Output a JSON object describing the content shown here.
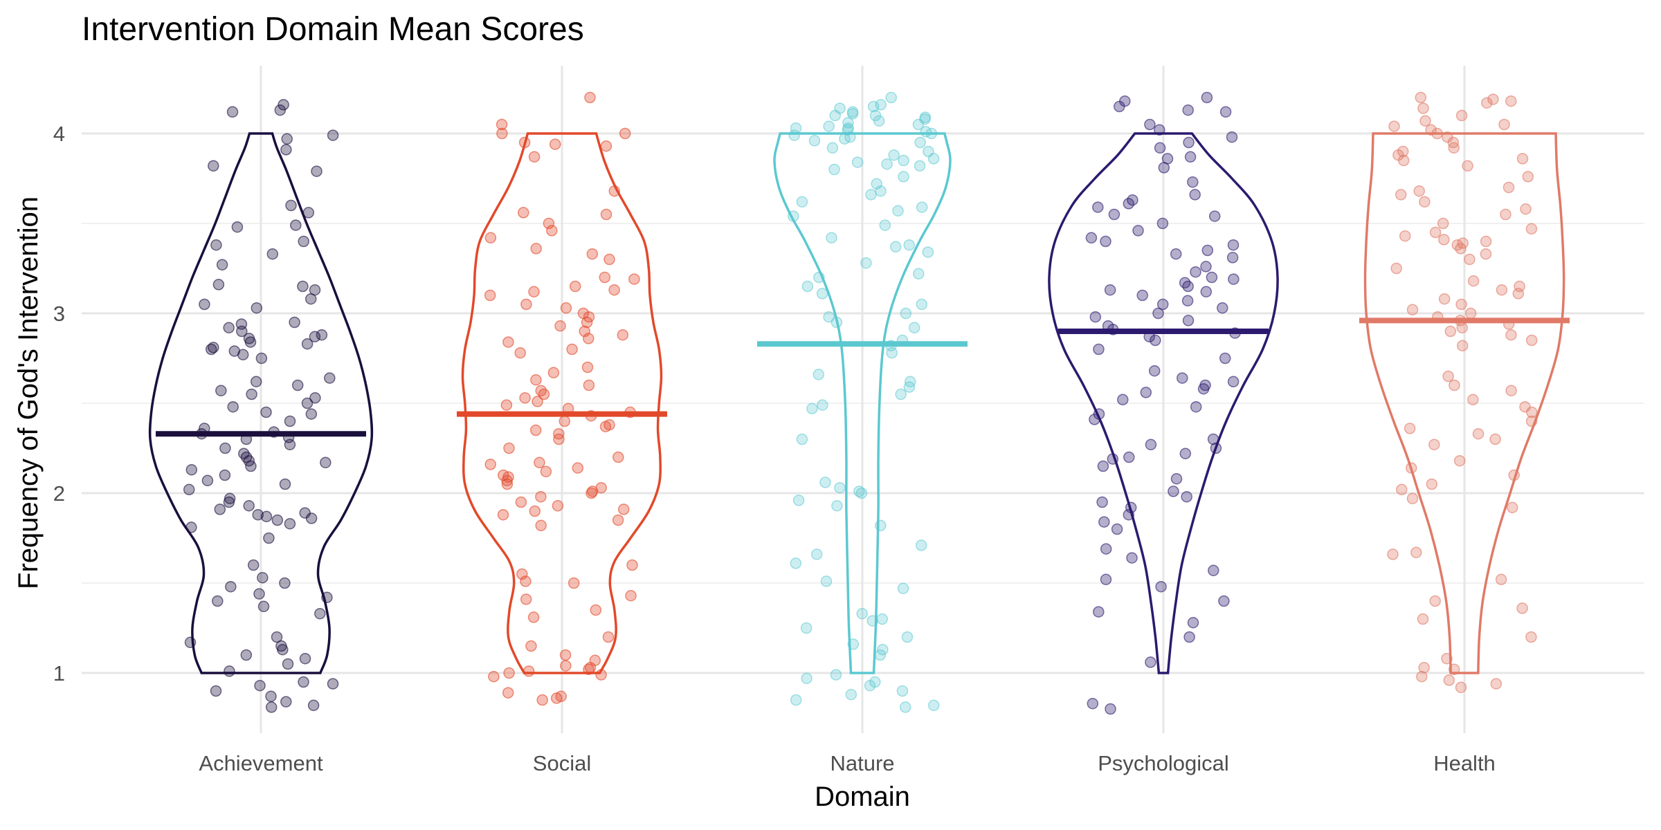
{
  "chart_data": {
    "type": "violin",
    "title": "Intervention Domain Mean Scores",
    "xlabel": "Domain",
    "ylabel": "Frequency of God's Intervention",
    "ylim": [
      0.7,
      4.25
    ],
    "y_ticks": [
      1,
      2,
      3,
      4
    ],
    "y_tick_labels": [
      "1",
      "2",
      "3",
      "4"
    ],
    "grid": true,
    "legend": "none",
    "categories": [
      "Achievement",
      "Social",
      "Nature",
      "Psychological",
      "Health"
    ],
    "series": [
      {
        "category": "Achievement",
        "color": "#1a0f3d",
        "point_opacity": 0.35,
        "mean": 2.33,
        "min": 1,
        "max": 4,
        "density": [
          [
            1.0,
            0.52
          ],
          [
            1.1,
            0.58
          ],
          [
            1.25,
            0.6
          ],
          [
            1.4,
            0.56
          ],
          [
            1.55,
            0.5
          ],
          [
            1.7,
            0.55
          ],
          [
            1.85,
            0.7
          ],
          [
            2.0,
            0.82
          ],
          [
            2.15,
            0.92
          ],
          [
            2.3,
            0.97
          ],
          [
            2.45,
            0.96
          ],
          [
            2.6,
            0.92
          ],
          [
            2.75,
            0.86
          ],
          [
            2.9,
            0.78
          ],
          [
            3.05,
            0.69
          ],
          [
            3.2,
            0.6
          ],
          [
            3.35,
            0.5
          ],
          [
            3.5,
            0.4
          ],
          [
            3.65,
            0.31
          ],
          [
            3.8,
            0.22
          ],
          [
            3.92,
            0.14
          ],
          [
            4.0,
            0.1
          ]
        ],
        "points": [
          4.16,
          4.12,
          4.13,
          3.99,
          3.97,
          3.91,
          3.82,
          3.79,
          3.6,
          3.56,
          3.49,
          3.48,
          3.4,
          3.38,
          3.33,
          3.27,
          3.16,
          3.15,
          3.13,
          3.08,
          3.05,
          3.03,
          2.95,
          2.94,
          2.92,
          2.9,
          2.88,
          2.87,
          2.86,
          2.84,
          2.83,
          2.81,
          2.8,
          2.79,
          2.77,
          2.75,
          2.64,
          2.62,
          2.6,
          2.57,
          2.55,
          2.53,
          2.5,
          2.48,
          2.45,
          2.44,
          2.4,
          2.36,
          2.34,
          2.33,
          2.31,
          2.3,
          2.27,
          2.25,
          2.22,
          2.2,
          2.18,
          2.17,
          2.15,
          2.13,
          2.1,
          2.07,
          2.05,
          2.02,
          1.97,
          1.95,
          1.93,
          1.91,
          1.89,
          1.88,
          1.87,
          1.86,
          1.85,
          1.83,
          1.81,
          1.75,
          1.6,
          1.53,
          1.5,
          1.48,
          1.44,
          1.42,
          1.4,
          1.37,
          1.33,
          1.2,
          1.17,
          1.15,
          1.13,
          1.1,
          1.08,
          1.05,
          1.01,
          0.95,
          0.94,
          0.93,
          0.9,
          0.87,
          0.84,
          0.82,
          0.81
        ]
      },
      {
        "category": "Social",
        "color": "#e2492a",
        "point_opacity": 0.35,
        "mean": 2.44,
        "min": 1,
        "max": 4,
        "density": [
          [
            1.0,
            0.33
          ],
          [
            1.08,
            0.4
          ],
          [
            1.2,
            0.47
          ],
          [
            1.35,
            0.46
          ],
          [
            1.5,
            0.42
          ],
          [
            1.62,
            0.46
          ],
          [
            1.75,
            0.6
          ],
          [
            1.9,
            0.76
          ],
          [
            2.05,
            0.85
          ],
          [
            2.2,
            0.86
          ],
          [
            2.35,
            0.84
          ],
          [
            2.5,
            0.85
          ],
          [
            2.65,
            0.87
          ],
          [
            2.8,
            0.85
          ],
          [
            2.95,
            0.8
          ],
          [
            3.1,
            0.77
          ],
          [
            3.25,
            0.76
          ],
          [
            3.4,
            0.72
          ],
          [
            3.55,
            0.6
          ],
          [
            3.7,
            0.47
          ],
          [
            3.85,
            0.37
          ],
          [
            4.0,
            0.3
          ]
        ],
        "points": [
          4.2,
          4.05,
          4.0,
          4.0,
          3.95,
          3.94,
          3.93,
          3.87,
          3.68,
          3.56,
          3.55,
          3.5,
          3.46,
          3.42,
          3.36,
          3.33,
          3.3,
          3.2,
          3.19,
          3.15,
          3.13,
          3.12,
          3.1,
          3.05,
          3.03,
          3.0,
          2.98,
          2.95,
          2.93,
          2.9,
          2.88,
          2.86,
          2.84,
          2.8,
          2.78,
          2.7,
          2.67,
          2.63,
          2.6,
          2.57,
          2.55,
          2.53,
          2.51,
          2.49,
          2.47,
          2.45,
          2.43,
          2.4,
          2.38,
          2.37,
          2.35,
          2.33,
          2.3,
          2.25,
          2.2,
          2.17,
          2.16,
          2.14,
          2.12,
          2.1,
          2.09,
          2.07,
          2.05,
          2.03,
          2.01,
          2.0,
          1.98,
          1.95,
          1.93,
          1.91,
          1.9,
          1.88,
          1.85,
          1.82,
          1.6,
          1.55,
          1.51,
          1.5,
          1.43,
          1.41,
          1.35,
          1.31,
          1.2,
          1.15,
          1.1,
          1.07,
          1.04,
          1.03,
          1.02,
          1.01,
          1.0,
          0.99,
          0.98,
          0.89,
          0.87,
          0.86,
          0.85
        ]
      },
      {
        "category": "Nature",
        "color": "#5bc8d0",
        "point_opacity": 0.3,
        "mean": 2.83,
        "min": 1,
        "max": 4,
        "density": [
          [
            1.0,
            0.1
          ],
          [
            1.3,
            0.12
          ],
          [
            1.6,
            0.13
          ],
          [
            1.9,
            0.14
          ],
          [
            2.2,
            0.14
          ],
          [
            2.5,
            0.15
          ],
          [
            2.8,
            0.18
          ],
          [
            3.0,
            0.24
          ],
          [
            3.2,
            0.35
          ],
          [
            3.4,
            0.5
          ],
          [
            3.55,
            0.63
          ],
          [
            3.7,
            0.73
          ],
          [
            3.85,
            0.77
          ],
          [
            3.95,
            0.74
          ],
          [
            4.0,
            0.72
          ]
        ],
        "points": [
          4.2,
          4.16,
          4.15,
          4.14,
          4.12,
          4.11,
          4.1,
          4.1,
          4.09,
          4.08,
          4.07,
          4.06,
          4.05,
          4.04,
          4.03,
          4.03,
          4.02,
          4.01,
          4.0,
          3.99,
          3.98,
          3.97,
          3.96,
          3.95,
          3.92,
          3.9,
          3.88,
          3.86,
          3.85,
          3.84,
          3.83,
          3.82,
          3.8,
          3.76,
          3.72,
          3.68,
          3.66,
          3.62,
          3.59,
          3.57,
          3.54,
          3.49,
          3.42,
          3.38,
          3.37,
          3.34,
          3.28,
          3.22,
          3.2,
          3.15,
          3.11,
          3.05,
          3.0,
          2.98,
          2.95,
          2.92,
          2.85,
          2.82,
          2.78,
          2.66,
          2.62,
          2.59,
          2.55,
          2.49,
          2.47,
          2.3,
          2.06,
          2.03,
          2.01,
          2.0,
          1.96,
          1.93,
          1.82,
          1.71,
          1.66,
          1.61,
          1.51,
          1.47,
          1.33,
          1.3,
          1.29,
          1.25,
          1.2,
          1.16,
          1.13,
          1.1,
          0.99,
          0.97,
          0.95,
          0.93,
          0.9,
          0.88,
          0.85,
          0.82,
          0.81
        ]
      },
      {
        "category": "Psychological",
        "color": "#2c1a6e",
        "point_opacity": 0.35,
        "mean": 2.9,
        "min": 1,
        "max": 4,
        "density": [
          [
            1.0,
            0.04
          ],
          [
            1.2,
            0.07
          ],
          [
            1.4,
            0.11
          ],
          [
            1.6,
            0.16
          ],
          [
            1.8,
            0.24
          ],
          [
            2.0,
            0.33
          ],
          [
            2.2,
            0.43
          ],
          [
            2.4,
            0.55
          ],
          [
            2.6,
            0.7
          ],
          [
            2.8,
            0.87
          ],
          [
            3.0,
            0.97
          ],
          [
            3.2,
            1.0
          ],
          [
            3.4,
            0.95
          ],
          [
            3.6,
            0.8
          ],
          [
            3.75,
            0.6
          ],
          [
            3.88,
            0.4
          ],
          [
            4.0,
            0.25
          ]
        ],
        "points": [
          4.2,
          4.18,
          4.15,
          4.13,
          4.12,
          4.05,
          4.02,
          3.98,
          3.95,
          3.92,
          3.87,
          3.86,
          3.81,
          3.73,
          3.66,
          3.63,
          3.61,
          3.59,
          3.55,
          3.54,
          3.5,
          3.46,
          3.42,
          3.4,
          3.38,
          3.35,
          3.33,
          3.31,
          3.26,
          3.23,
          3.2,
          3.19,
          3.17,
          3.15,
          3.13,
          3.12,
          3.1,
          3.07,
          3.05,
          3.03,
          3.0,
          2.98,
          2.96,
          2.93,
          2.91,
          2.89,
          2.87,
          2.85,
          2.8,
          2.75,
          2.68,
          2.64,
          2.62,
          2.6,
          2.58,
          2.56,
          2.52,
          2.48,
          2.44,
          2.41,
          2.3,
          2.27,
          2.25,
          2.22,
          2.2,
          2.19,
          2.15,
          2.08,
          2.01,
          1.98,
          1.95,
          1.92,
          1.88,
          1.84,
          1.8,
          1.69,
          1.64,
          1.57,
          1.52,
          1.48,
          1.4,
          1.34,
          1.28,
          1.2,
          1.06,
          0.83,
          0.8
        ]
      },
      {
        "category": "Health",
        "color": "#e07a68",
        "point_opacity": 0.35,
        "mean": 2.96,
        "min": 1,
        "max": 4,
        "density": [
          [
            1.0,
            0.12
          ],
          [
            1.2,
            0.13
          ],
          [
            1.4,
            0.16
          ],
          [
            1.6,
            0.22
          ],
          [
            1.8,
            0.3
          ],
          [
            2.0,
            0.4
          ],
          [
            2.2,
            0.5
          ],
          [
            2.4,
            0.62
          ],
          [
            2.6,
            0.73
          ],
          [
            2.8,
            0.82
          ],
          [
            3.0,
            0.86
          ],
          [
            3.2,
            0.87
          ],
          [
            3.4,
            0.86
          ],
          [
            3.6,
            0.84
          ],
          [
            3.8,
            0.81
          ],
          [
            4.0,
            0.8
          ]
        ],
        "points": [
          4.2,
          4.19,
          4.18,
          4.17,
          4.14,
          4.1,
          4.07,
          4.05,
          4.04,
          4.02,
          4.0,
          3.98,
          3.95,
          3.92,
          3.9,
          3.88,
          3.86,
          3.85,
          3.82,
          3.76,
          3.7,
          3.68,
          3.66,
          3.62,
          3.58,
          3.55,
          3.5,
          3.47,
          3.45,
          3.43,
          3.41,
          3.4,
          3.39,
          3.38,
          3.36,
          3.33,
          3.3,
          3.25,
          3.18,
          3.15,
          3.13,
          3.11,
          3.08,
          3.05,
          3.02,
          3.0,
          2.98,
          2.96,
          2.94,
          2.92,
          2.9,
          2.88,
          2.85,
          2.82,
          2.65,
          2.6,
          2.57,
          2.52,
          2.48,
          2.45,
          2.4,
          2.36,
          2.33,
          2.3,
          2.27,
          2.18,
          2.14,
          2.1,
          2.05,
          2.02,
          1.97,
          1.92,
          1.67,
          1.66,
          1.52,
          1.4,
          1.36,
          1.3,
          1.2,
          1.08,
          1.03,
          1.02,
          0.98,
          0.96,
          0.94,
          0.92
        ]
      }
    ]
  }
}
